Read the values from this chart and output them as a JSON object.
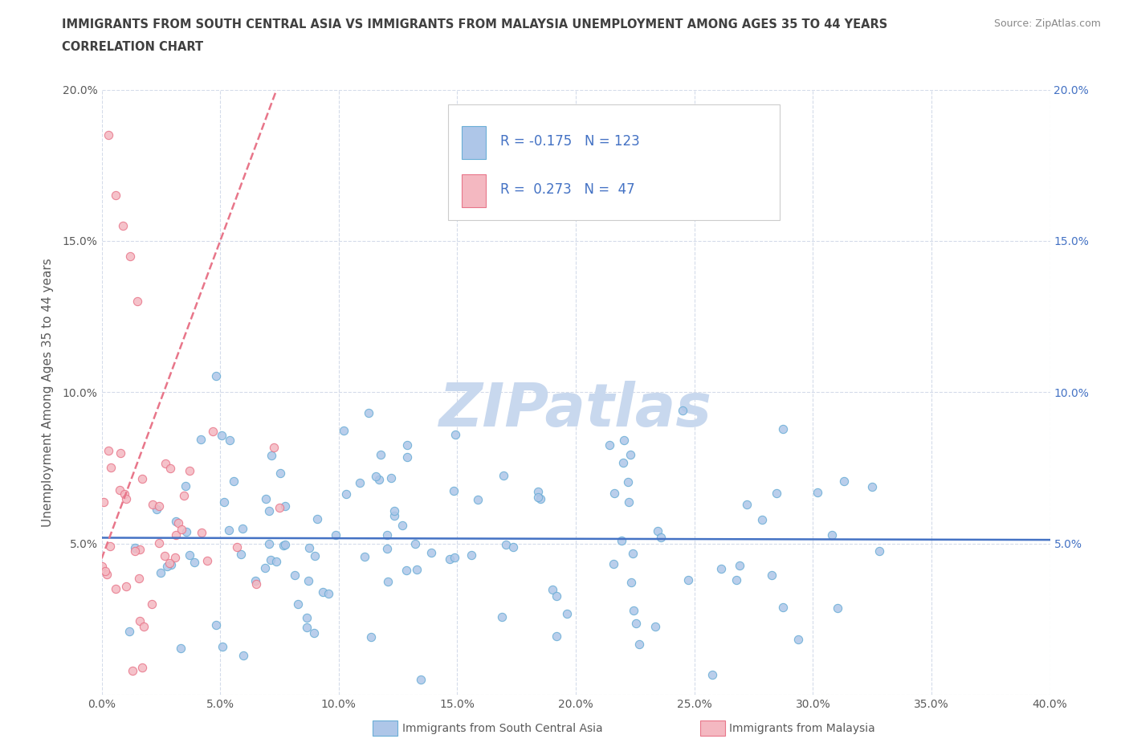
{
  "title_line1": "IMMIGRANTS FROM SOUTH CENTRAL ASIA VS IMMIGRANTS FROM MALAYSIA UNEMPLOYMENT AMONG AGES 35 TO 44 YEARS",
  "title_line2": "CORRELATION CHART",
  "source_text": "Source: ZipAtlas.com",
  "watermark": "ZIPatlas",
  "ylabel": "Unemployment Among Ages 35 to 44 years",
  "xlim": [
    0.0,
    0.4
  ],
  "ylim": [
    0.0,
    0.2
  ],
  "xticks": [
    0.0,
    0.05,
    0.1,
    0.15,
    0.2,
    0.25,
    0.3,
    0.35,
    0.4
  ],
  "yticks": [
    0.0,
    0.05,
    0.1,
    0.15,
    0.2
  ],
  "series1_color": "#aec6e8",
  "series1_edge": "#6aaed6",
  "series2_color": "#f4b8c1",
  "series2_edge": "#e8768a",
  "trend1_color": "#4472c4",
  "trend2_color": "#e8768a",
  "R1": -0.175,
  "N1": 123,
  "R2": 0.273,
  "N2": 47,
  "legend1_label": "Immigrants from South Central Asia",
  "legend2_label": "Immigrants from Malaysia",
  "title_color": "#404040",
  "watermark_color": "#c8d8ee",
  "grid_color": "#d0d8e8"
}
